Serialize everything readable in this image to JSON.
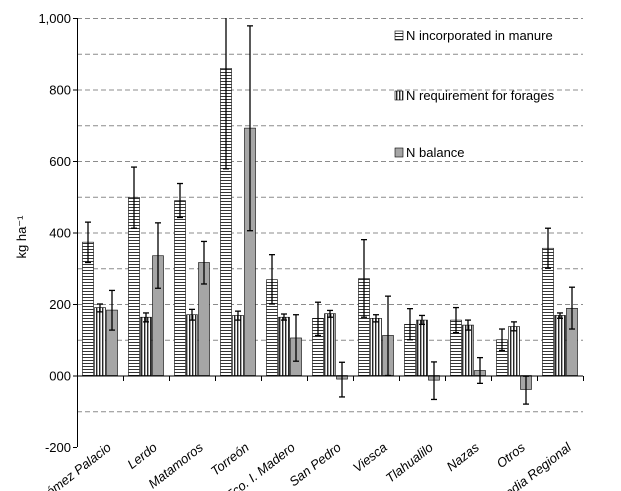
{
  "chart_data": {
    "type": "bar",
    "categories": [
      "Gómez Palacio",
      "Lerdo",
      "Matamoros",
      "Torreón",
      "Fco. I. Madero",
      "San Pedro",
      "Viesca",
      "Tlahualilo",
      "Nazas",
      "Otros",
      "Media Regional"
    ],
    "series": [
      {
        "name": "N incorporated in manure",
        "pattern": "horizontal-lines",
        "values": [
          373,
          498,
          489,
          859,
          268,
          160,
          271,
          143,
          155,
          100,
          356
        ],
        "err_high": [
          429,
          583,
          537,
          1000,
          338,
          205,
          380,
          187,
          190,
          130,
          412
        ],
        "err_low": [
          316,
          412,
          442,
          578,
          200,
          112,
          163,
          100,
          120,
          70,
          300
        ]
      },
      {
        "name": "N requirement for forages",
        "pattern": "vertical-lines",
        "values": [
          190,
          163,
          170,
          168,
          163,
          173,
          160,
          155,
          141,
          137,
          168
        ],
        "err_high": [
          200,
          175,
          185,
          180,
          172,
          182,
          170,
          168,
          155,
          150,
          175
        ],
        "err_low": [
          178,
          150,
          155,
          155,
          155,
          163,
          150,
          143,
          127,
          125,
          160
        ]
      },
      {
        "name": "N balance",
        "pattern": "solid-gray",
        "values": [
          183,
          335,
          316,
          692,
          105,
          -10,
          112,
          -13,
          14,
          -39,
          188
        ],
        "err_high": [
          238,
          427,
          375,
          978,
          170,
          37,
          222,
          38,
          50,
          -2,
          247
        ],
        "err_low": [
          127,
          244,
          256,
          405,
          40,
          -60,
          0,
          -67,
          -22,
          -80,
          130
        ]
      }
    ],
    "ylabel": "kg ha⁻¹",
    "ylim": [
      -200,
      1000
    ],
    "yticks": [
      -200,
      0,
      200,
      400,
      600,
      800,
      1000
    ],
    "ytick_labels": [
      "-200",
      "000",
      "200",
      "400",
      "600",
      "800",
      "1,000"
    ],
    "grid": true,
    "grid_style": "dashed",
    "legend_position": "top-right",
    "colors": {
      "balance": "#a6a6a6",
      "line": "#000000",
      "grid": "#8c8c8c"
    }
  }
}
